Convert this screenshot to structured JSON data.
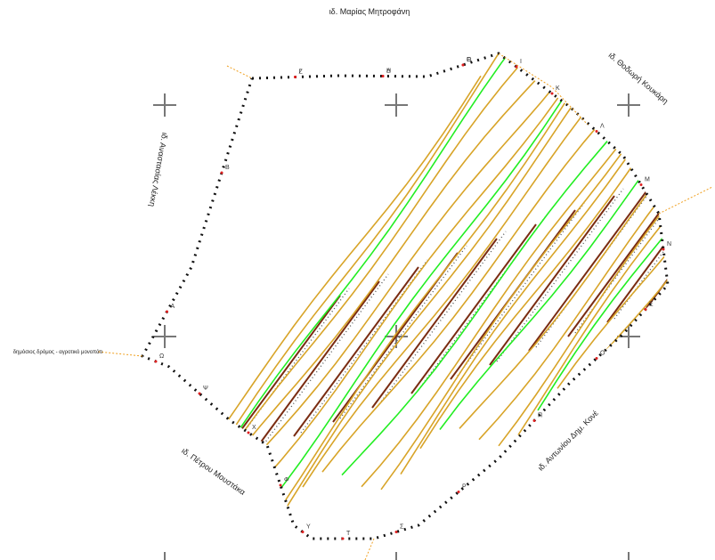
{
  "labels": {
    "top": "ιδ. Μαρίας Μητροφάνη",
    "top_right": "ιδ. Θοδωρή Κουκάρη",
    "left": "ιδ. Αναστασίας Λέκκη",
    "far_left": "δημόσιος δρόμος - αγροτικό μονοπάτι",
    "bottom_left": "ιδ. Πέτρου Μουστάκα",
    "bottom_right": "ιδ. Αντωνίου Δημ. Κονέ"
  },
  "vertices": [
    "Ζ",
    "Η",
    "Θ",
    "Ι",
    "Κ",
    "Λ",
    "Μ",
    "Ν",
    "Ξ",
    "Ο",
    "Π",
    "Ρ",
    "Σ",
    "Τ",
    "Υ",
    "Φ",
    "Χ",
    "Ψ",
    "Ω",
    "Α",
    "Β",
    "Γ",
    "Δ",
    "Ε"
  ]
}
